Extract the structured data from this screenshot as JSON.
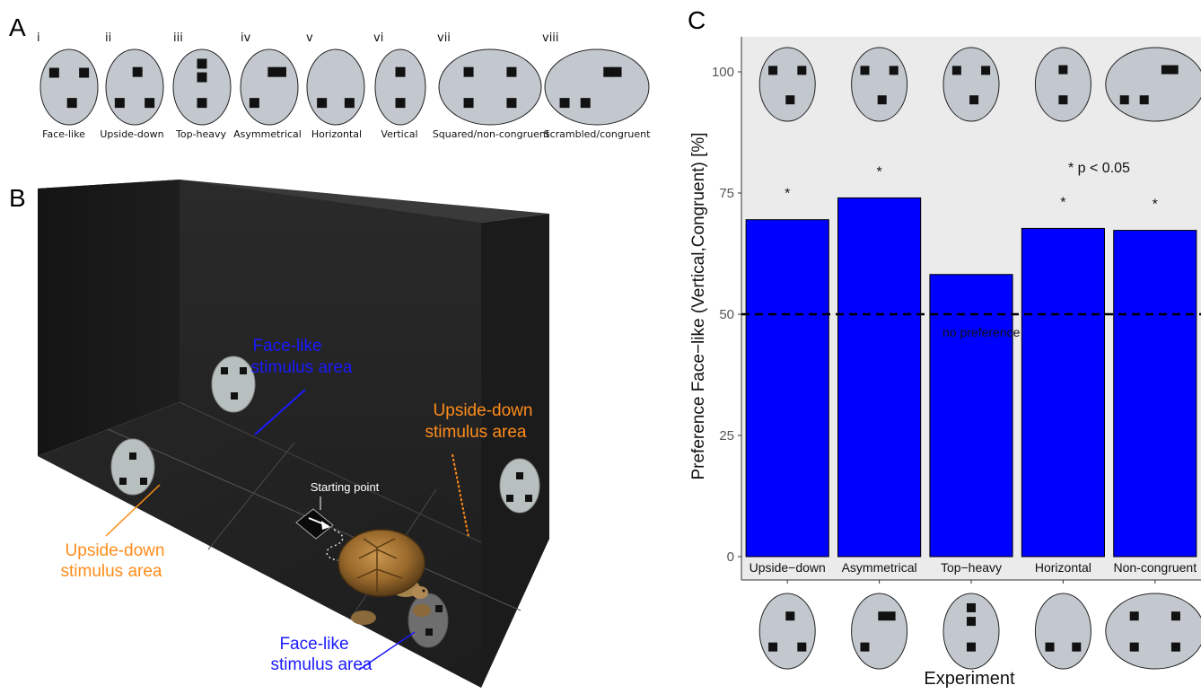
{
  "panels": {
    "a": "A",
    "b": "B",
    "c": "C"
  },
  "panel_a": {
    "stimuli": [
      {
        "numeral": "i",
        "label": "Face-like"
      },
      {
        "numeral": "ii",
        "label": "Upside-down"
      },
      {
        "numeral": "iii",
        "label": "Top-heavy"
      },
      {
        "numeral": "iv",
        "label": "Asymmetrical"
      },
      {
        "numeral": "v",
        "label": "Horizontal"
      },
      {
        "numeral": "vi",
        "label": "Vertical"
      },
      {
        "numeral": "vii",
        "label": "Squared/non-congruent"
      },
      {
        "numeral": "viii",
        "label": "Scrambled/congruent"
      }
    ]
  },
  "panel_b": {
    "face_like_area_back": [
      "Face-like",
      "stimulus area"
    ],
    "upside_down_area_right": [
      "Upside-down",
      "stimulus area"
    ],
    "upside_down_area_left": [
      "Upside-down",
      "stimulus area"
    ],
    "face_like_area_front": [
      "Face-like",
      "stimulus area"
    ],
    "starting_point": "Starting point",
    "colors": {
      "face_like_text": "#1a1aff",
      "upside_down_text": "#ff8c1a"
    }
  },
  "chart_data": {
    "type": "bar",
    "categories": [
      "Upside−down",
      "Asymmetrical",
      "Top−heavy",
      "Horizontal",
      "Non-congruent"
    ],
    "values": [
      69.5,
      74,
      58.2,
      67.7,
      67.3
    ],
    "significant": [
      true,
      true,
      false,
      true,
      true
    ],
    "significance_marker": "*",
    "significance_legend": "* p < 0.05",
    "reference_line": {
      "value": 50,
      "label": "no preference"
    },
    "ylabel": "Preference Face−like (Vertical,Congruent) [%]",
    "xlabel": "Experiment",
    "ylim": [
      0,
      105
    ],
    "yticks": [
      0,
      25,
      50,
      75,
      100
    ],
    "colors": {
      "bar": "#0000ff",
      "panel_bg": "#ebebeb"
    },
    "grid": false
  }
}
